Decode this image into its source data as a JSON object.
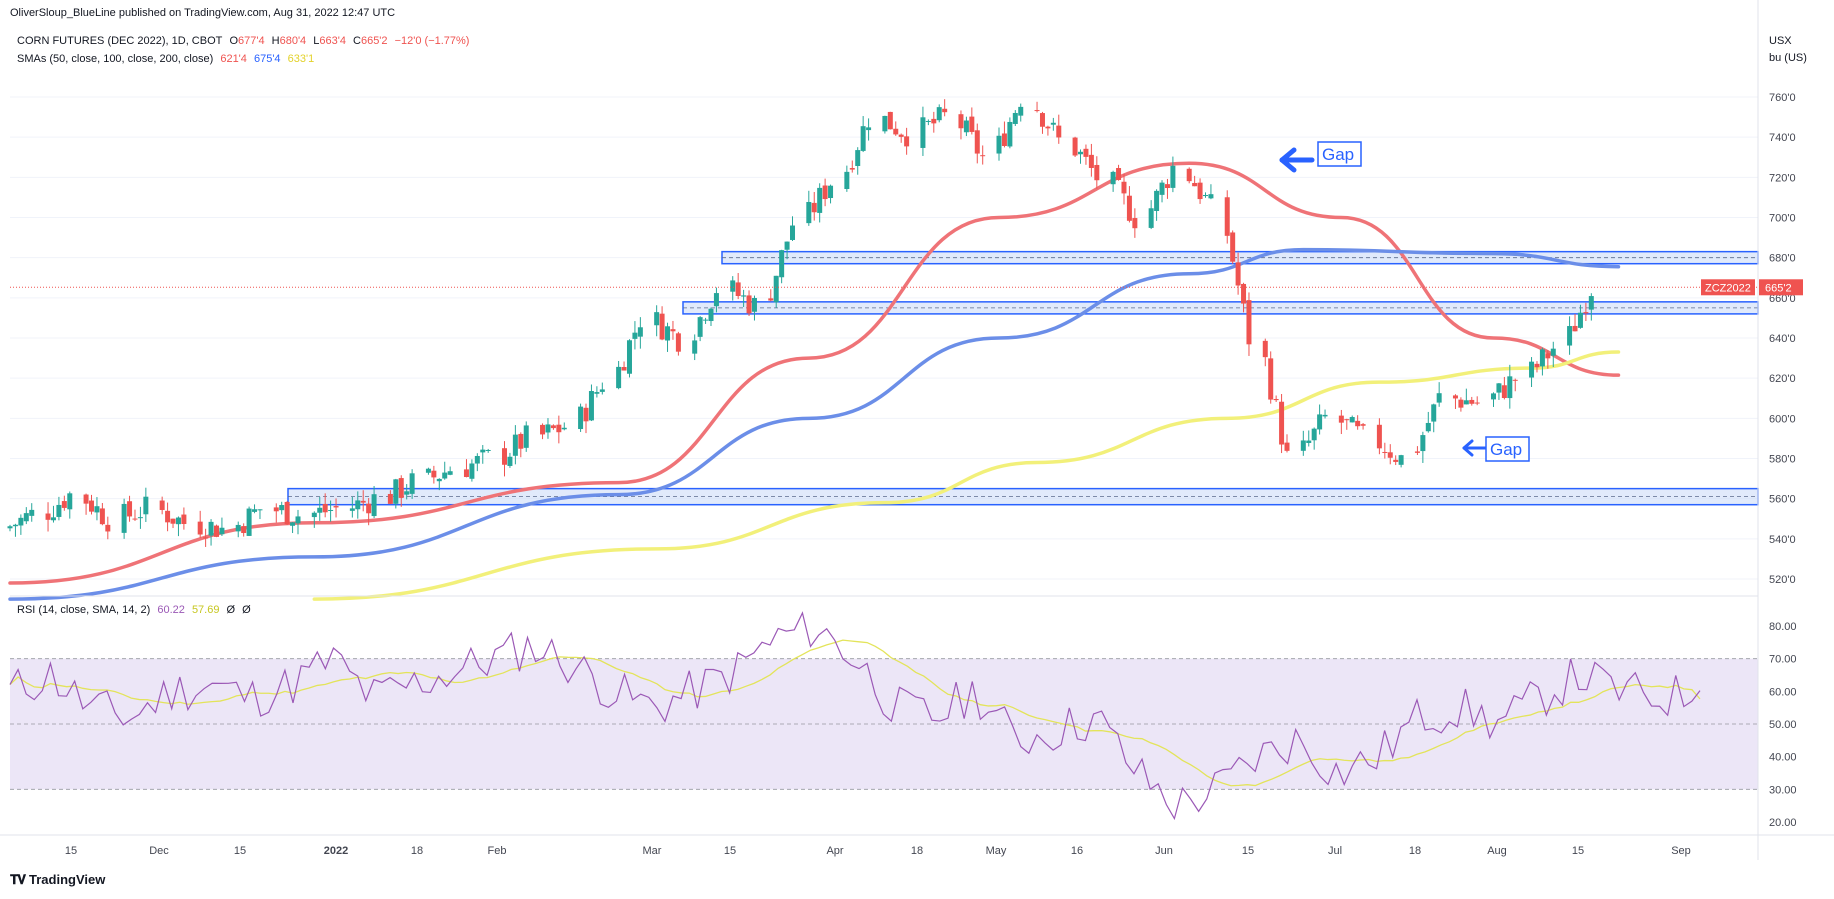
{
  "header": {
    "published": "OliverSloup_BlueLine published on TradingView.com, Aug 31, 2022 12:47 UTC"
  },
  "legend": {
    "symbol": "CORN FUTURES (DEC 2022), 1D, CBOT",
    "o_label": "O",
    "o": "677'4",
    "h_label": "H",
    "h": "680'4",
    "l_label": "L",
    "l": "663'4",
    "c_label": "C",
    "c": "665'2",
    "change": "−12'0 (−1.77%)",
    "sma_label": "SMAs (50, close, 100, close, 200, close)",
    "sma50_value": "621'4",
    "sma100_value": "675'4",
    "sma200_value": "633'1",
    "rsi_label": "RSI (14, close, SMA, 14, 2)",
    "rsi_value": "60.22",
    "rsi_sma_value": "57.69",
    "rsi_extra1": "Ø",
    "rsi_extra2": "Ø"
  },
  "price_axis": {
    "currency": "USX",
    "unit": "bu (US)",
    "ticks": [
      "760'0",
      "740'0",
      "720'0",
      "700'0",
      "680'0",
      "660'0",
      "640'0",
      "620'0",
      "600'0",
      "580'0",
      "560'0",
      "540'0",
      "520'0"
    ],
    "last_price_symbol": "ZCZ2022",
    "last_price": "665'2"
  },
  "rsi_axis": {
    "ticks": [
      "80.00",
      "70.00",
      "60.00",
      "50.00",
      "40.00",
      "30.00",
      "20.00"
    ]
  },
  "time_axis": {
    "labels": [
      "15",
      "Dec",
      "15",
      "2022",
      "18",
      "Feb",
      "Mar",
      "15",
      "Apr",
      "18",
      "May",
      "16",
      "Jun",
      "15",
      "Jul",
      "18",
      "Aug",
      "15",
      "Sep"
    ]
  },
  "annotations": {
    "gap_top": "Gap",
    "gap_bottom": "Gap"
  },
  "footer": {
    "brand": "TradingView"
  },
  "colors": {
    "up": "#26a69a",
    "down": "#ef5350",
    "sma50": "#ef7377",
    "sma100": "#6b8ee8",
    "sma200": "#f2f07a",
    "zone_border": "#2962ff",
    "zone_fill": "#c9d9f7",
    "rsi_line": "#9b59b6",
    "rsi_sma": "#e3e45a",
    "rsi_band": "#ece6f7",
    "gap_arrow": "#2962ff"
  },
  "chart_data": {
    "type": "candlestick",
    "title": "CORN FUTURES (DEC 2022), 1D, CBOT",
    "y_unit": "USX / bu (US)",
    "ylim": [
      510,
      770
    ],
    "x_range": [
      "2021-11-08",
      "2022-09-15"
    ],
    "last_close": 665.25,
    "closes": [
      {
        "date": "2021-11-08",
        "close": 545
      },
      {
        "date": "2021-11-15",
        "close": 552
      },
      {
        "date": "2021-11-22",
        "close": 562
      },
      {
        "date": "2021-11-29",
        "close": 550
      },
      {
        "date": "2021-12-06",
        "close": 555
      },
      {
        "date": "2021-12-13",
        "close": 548
      },
      {
        "date": "2021-12-20",
        "close": 545
      },
      {
        "date": "2021-12-27",
        "close": 555
      },
      {
        "date": "2022-01-03",
        "close": 552
      },
      {
        "date": "2022-01-10",
        "close": 555
      },
      {
        "date": "2022-01-17",
        "close": 560
      },
      {
        "date": "2022-01-24",
        "close": 568
      },
      {
        "date": "2022-01-31",
        "close": 575
      },
      {
        "date": "2022-02-07",
        "close": 580
      },
      {
        "date": "2022-02-14",
        "close": 590
      },
      {
        "date": "2022-02-21",
        "close": 596
      },
      {
        "date": "2022-02-28",
        "close": 618
      },
      {
        "date": "2022-03-07",
        "close": 650
      },
      {
        "date": "2022-03-14",
        "close": 640
      },
      {
        "date": "2022-03-21",
        "close": 665
      },
      {
        "date": "2022-03-28",
        "close": 656
      },
      {
        "date": "2022-04-04",
        "close": 697
      },
      {
        "date": "2022-04-11",
        "close": 718
      },
      {
        "date": "2022-04-18",
        "close": 750
      },
      {
        "date": "2022-04-25",
        "close": 742
      },
      {
        "date": "2022-05-02",
        "close": 750
      },
      {
        "date": "2022-05-09",
        "close": 730
      },
      {
        "date": "2022-05-16",
        "close": 760
      },
      {
        "date": "2022-05-23",
        "close": 738
      },
      {
        "date": "2022-05-30",
        "close": 720
      },
      {
        "date": "2022-06-06",
        "close": 700
      },
      {
        "date": "2022-06-13",
        "close": 725
      },
      {
        "date": "2022-06-20",
        "close": 705
      },
      {
        "date": "2022-06-27",
        "close": 640
      },
      {
        "date": "2022-07-04",
        "close": 580
      },
      {
        "date": "2022-07-11",
        "close": 600
      },
      {
        "date": "2022-07-18",
        "close": 590
      },
      {
        "date": "2022-07-25",
        "close": 580
      },
      {
        "date": "2022-08-01",
        "close": 610
      },
      {
        "date": "2022-08-08",
        "close": 608
      },
      {
        "date": "2022-08-15",
        "close": 620
      },
      {
        "date": "2022-08-22",
        "close": 635
      },
      {
        "date": "2022-08-29",
        "close": 665.25
      }
    ],
    "sma": [
      {
        "name": "SMA 50",
        "points": [
          {
            "date": "2021-11-08",
            "value": 518
          },
          {
            "date": "2022-01-03",
            "value": 548
          },
          {
            "date": "2022-02-28",
            "value": 568
          },
          {
            "date": "2022-04-04",
            "value": 630
          },
          {
            "date": "2022-05-09",
            "value": 700
          },
          {
            "date": "2022-06-13",
            "value": 727
          },
          {
            "date": "2022-07-11",
            "value": 700
          },
          {
            "date": "2022-08-08",
            "value": 640
          },
          {
            "date": "2022-08-31",
            "value": 621.5
          }
        ]
      },
      {
        "name": "SMA 100",
        "points": [
          {
            "date": "2021-11-08",
            "value": 510
          },
          {
            "date": "2022-01-03",
            "value": 531
          },
          {
            "date": "2022-02-28",
            "value": 562
          },
          {
            "date": "2022-04-04",
            "value": 600
          },
          {
            "date": "2022-05-09",
            "value": 640
          },
          {
            "date": "2022-06-13",
            "value": 672
          },
          {
            "date": "2022-07-04",
            "value": 684
          },
          {
            "date": "2022-08-08",
            "value": 682
          },
          {
            "date": "2022-08-31",
            "value": 675.5
          }
        ]
      },
      {
        "name": "SMA 200",
        "points": [
          {
            "date": "2022-01-03",
            "value": 510
          },
          {
            "date": "2022-03-07",
            "value": 535
          },
          {
            "date": "2022-04-18",
            "value": 558
          },
          {
            "date": "2022-05-16",
            "value": 578
          },
          {
            "date": "2022-06-20",
            "value": 600
          },
          {
            "date": "2022-07-18",
            "value": 618
          },
          {
            "date": "2022-08-15",
            "value": 625
          },
          {
            "date": "2022-08-31",
            "value": 633
          }
        ]
      }
    ],
    "zones": [
      {
        "low": 677,
        "high": 683
      },
      {
        "low": 652,
        "high": 658
      },
      {
        "low": 557,
        "high": 565
      }
    ],
    "rsi": {
      "name": "RSI (14, close, SMA, 14, 2)",
      "ylim": [
        15,
        85
      ],
      "bands": [
        30,
        50,
        70
      ],
      "last": 60.22,
      "sma_last": 57.69
    }
  }
}
